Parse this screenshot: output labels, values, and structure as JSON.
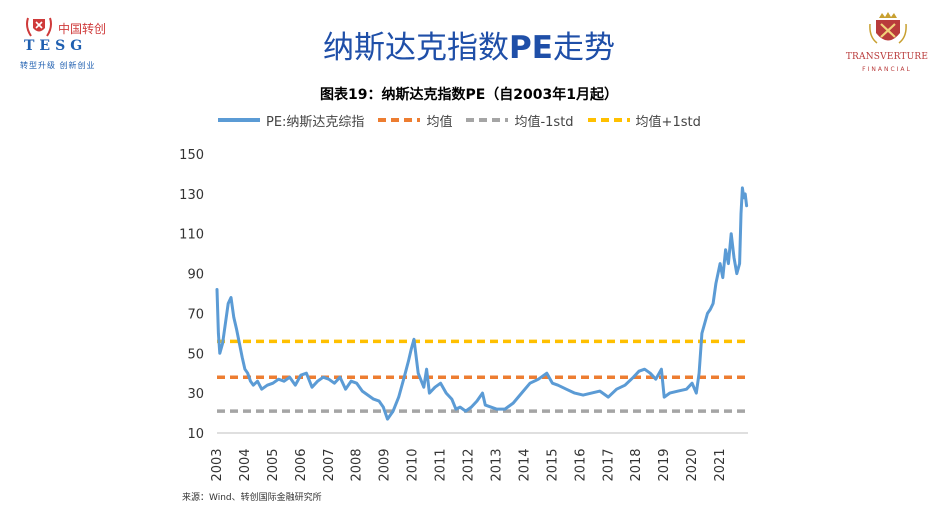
{
  "header": {
    "logo_left": {
      "brand_cn": "中国转创",
      "brand_en": "TESG",
      "slogan": "转型升级 创新创业"
    },
    "logo_right": {
      "brand_en": "TRANSVERTURE",
      "brand_sub": "FINANCIAL"
    },
    "title_cn_a": "纳斯达克指数",
    "title_bold": "PE",
    "title_cn_b": "走势"
  },
  "colors": {
    "title": "#1f4fa8",
    "pe_line": "#5b9bd5",
    "mean": "#ed7d31",
    "minus_std": "#a5a5a5",
    "plus_std": "#ffc000"
  },
  "chart_data": {
    "type": "line",
    "title": "图表19：纳斯达克指数PE（自2003年1月起）",
    "xlabel": "",
    "ylabel": "",
    "ylim": [
      10,
      150
    ],
    "yticks": [
      "150",
      "130",
      "110",
      "90",
      "70",
      "50",
      "30",
      "10"
    ],
    "xlim": [
      2003.0,
      2022.0
    ],
    "xticks": [
      "2003",
      "2004",
      "2005",
      "2006",
      "2007",
      "2008",
      "2009",
      "2010",
      "2011",
      "2012",
      "2013",
      "2014",
      "2015",
      "2016",
      "2017",
      "2018",
      "2019",
      "2020",
      "2021"
    ],
    "grid": false,
    "legend_position": "top",
    "series": [
      {
        "name": "PE:纳斯达克综指",
        "style": "solid",
        "x": [
          2003.0,
          2003.05,
          2003.1,
          2003.2,
          2003.3,
          2003.4,
          2003.5,
          2003.6,
          2003.7,
          2003.8,
          2003.9,
          2004.0,
          2004.1,
          2004.2,
          2004.3,
          2004.45,
          2004.6,
          2004.8,
          2005.0,
          2005.2,
          2005.4,
          2005.6,
          2005.8,
          2006.0,
          2006.2,
          2006.4,
          2006.6,
          2006.8,
          2007.0,
          2007.2,
          2007.4,
          2007.6,
          2007.8,
          2008.0,
          2008.2,
          2008.4,
          2008.6,
          2008.8,
          2008.95,
          2009.1,
          2009.3,
          2009.5,
          2009.7,
          2009.85,
          2009.95,
          2010.05,
          2010.2,
          2010.4,
          2010.5,
          2010.6,
          2010.8,
          2011.0,
          2011.2,
          2011.4,
          2011.55,
          2011.7,
          2011.9,
          2012.1,
          2012.3,
          2012.5,
          2012.6,
          2012.8,
          2013.0,
          2013.3,
          2013.6,
          2013.9,
          2014.2,
          2014.5,
          2014.8,
          2015.0,
          2015.2,
          2015.5,
          2015.8,
          2016.1,
          2016.4,
          2016.7,
          2017.0,
          2017.3,
          2017.6,
          2017.9,
          2018.1,
          2018.3,
          2018.5,
          2018.7,
          2018.9,
          2019.0,
          2019.2,
          2019.5,
          2019.8,
          2020.0,
          2020.15,
          2020.25,
          2020.35,
          2020.45,
          2020.55,
          2020.65,
          2020.75,
          2020.85,
          2021.0,
          2021.1,
          2021.2,
          2021.3,
          2021.4,
          2021.5,
          2021.6,
          2021.7,
          2021.75,
          2021.8,
          2021.85,
          2021.9,
          2021.95
        ],
        "values": [
          82,
          60,
          50,
          55,
          65,
          75,
          78,
          68,
          62,
          55,
          48,
          42,
          40,
          36,
          34,
          36,
          32,
          34,
          35,
          37,
          36,
          38,
          34,
          39,
          40,
          33,
          36,
          38,
          37,
          35,
          38,
          32,
          36,
          35,
          31,
          29,
          27,
          26,
          23,
          17,
          21,
          28,
          38,
          46,
          52,
          57,
          40,
          33,
          42,
          30,
          33,
          35,
          30,
          27,
          22,
          23,
          21,
          23,
          26,
          30,
          24,
          23,
          22,
          22,
          25,
          30,
          35,
          37,
          40,
          35,
          34,
          32,
          30,
          29,
          30,
          31,
          28,
          32,
          34,
          38,
          41,
          42,
          40,
          37,
          42,
          28,
          30,
          31,
          32,
          35,
          30,
          40,
          60,
          65,
          70,
          72,
          75,
          85,
          95,
          88,
          102,
          95,
          110,
          98,
          90,
          95,
          120,
          133,
          128,
          130,
          124
        ]
      },
      {
        "name": "均值",
        "style": "dash",
        "value": 38
      },
      {
        "name": "均值-1std",
        "style": "dash",
        "value": 21
      },
      {
        "name": "均值+1std",
        "style": "dash",
        "value": 56
      }
    ]
  },
  "source_note": "来源：Wind、转创国际金融研究所"
}
